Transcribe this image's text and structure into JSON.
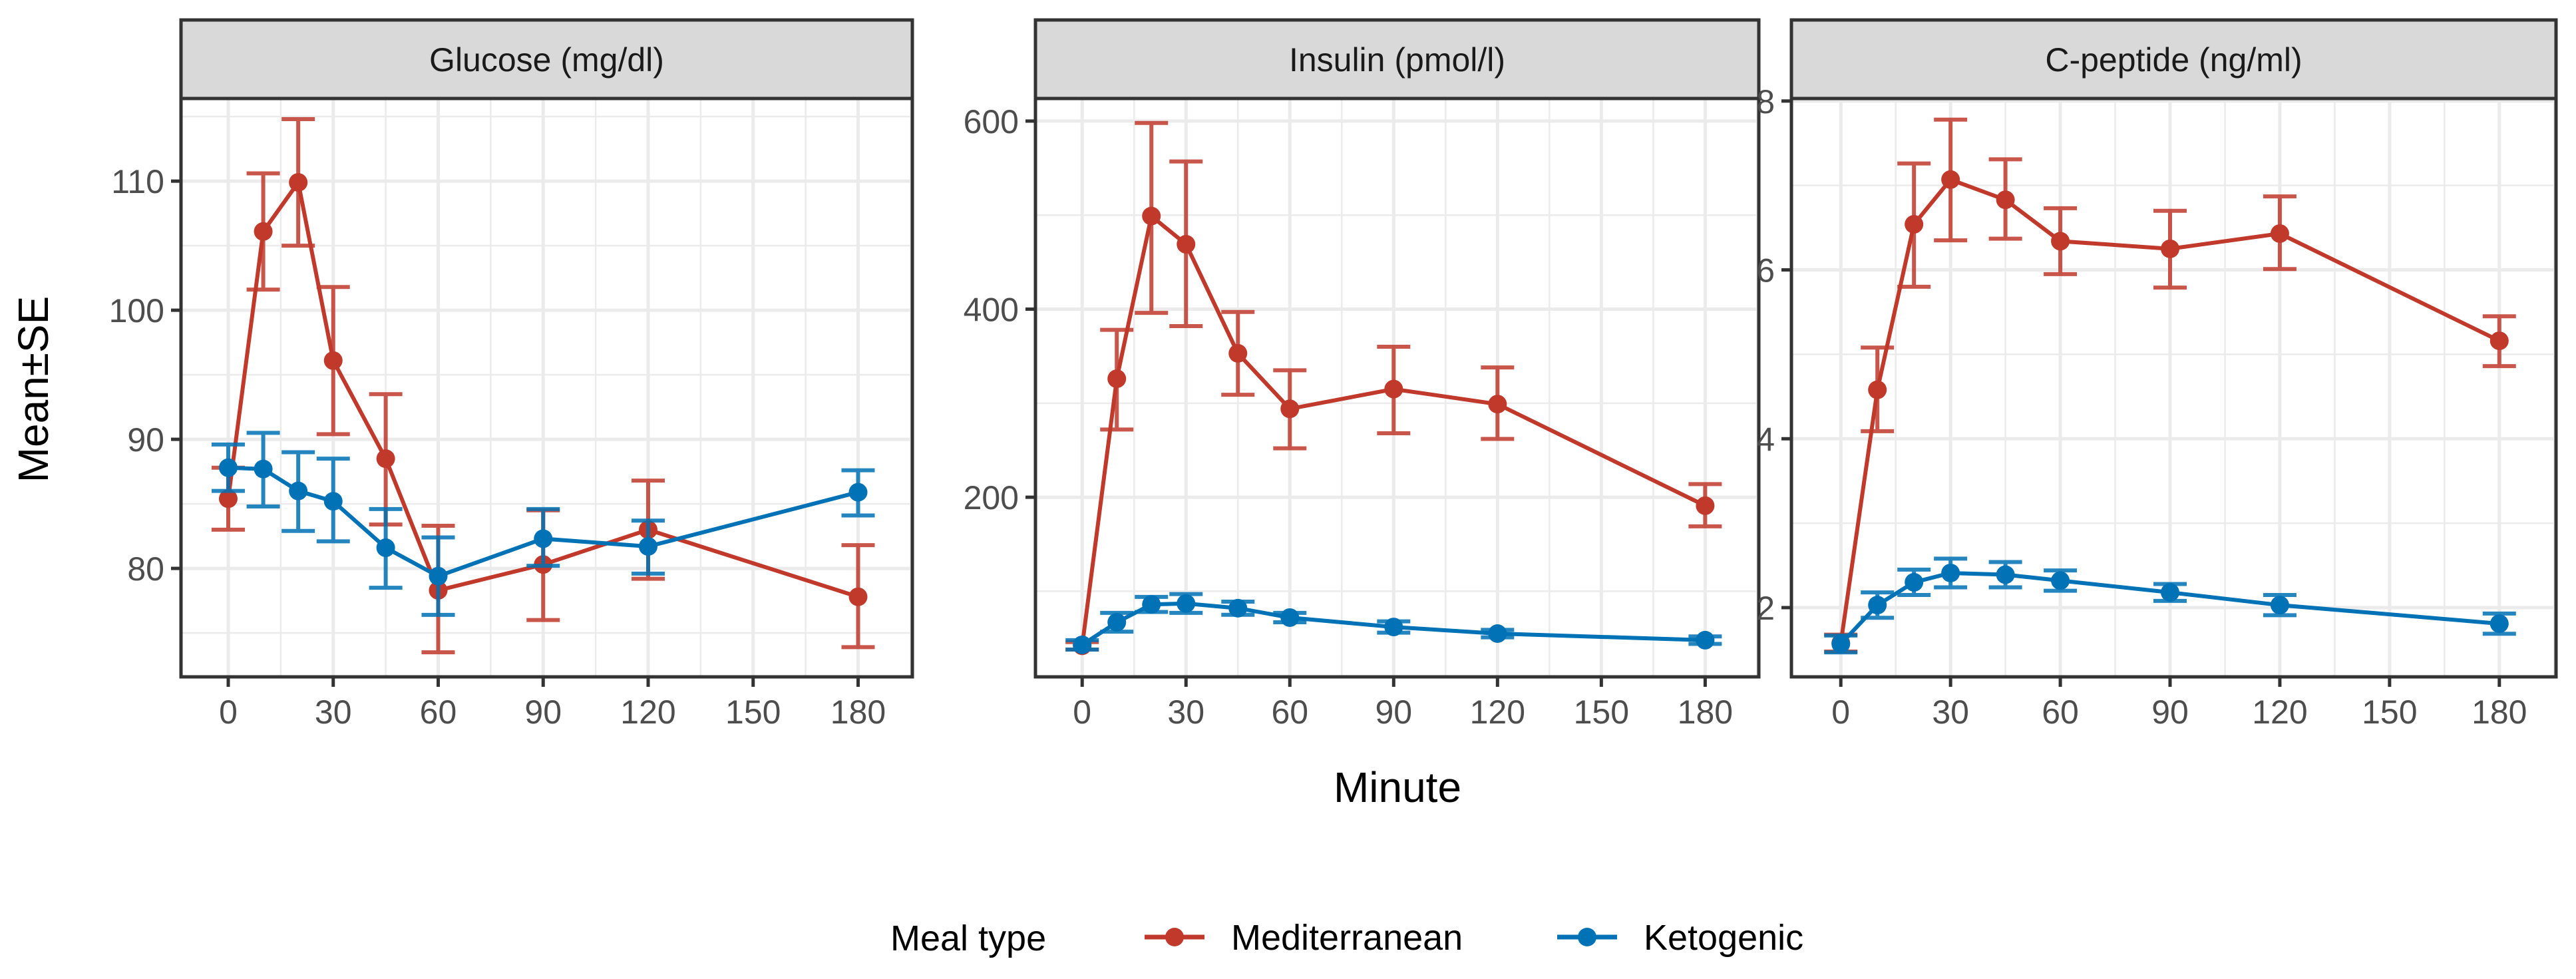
{
  "chart_data": [
    {
      "type": "line",
      "title": "Glucose (mg/dl)",
      "ylabel": "Mean±SE",
      "xlabel": "Minute",
      "x": [
        0,
        10,
        20,
        30,
        45,
        60,
        90,
        120,
        180
      ],
      "xticks": [
        0,
        30,
        60,
        90,
        120,
        150,
        180
      ],
      "xlim": [
        -13.5,
        195.5
      ],
      "yticks": [
        80,
        90,
        100,
        110
      ],
      "ylim": [
        71.6,
        116.4
      ],
      "grid": true,
      "series": [
        {
          "name": "Mediterranean",
          "values": [
            85.4,
            106.1,
            109.9,
            96.1,
            88.5,
            78.3,
            80.3,
            83.0,
            77.8
          ],
          "lower": [
            83.0,
            101.6,
            105.0,
            90.4,
            83.4,
            73.5,
            76.0,
            79.2,
            73.9
          ],
          "upper": [
            87.8,
            110.6,
            114.8,
            101.8,
            93.5,
            83.3,
            84.5,
            86.8,
            81.8
          ]
        },
        {
          "name": "Ketogenic",
          "values": [
            87.8,
            87.7,
            86.0,
            85.2,
            81.6,
            79.4,
            82.3,
            81.7,
            85.9
          ],
          "lower": [
            86.0,
            84.8,
            82.9,
            82.1,
            78.5,
            76.4,
            80.2,
            79.6,
            84.1
          ],
          "upper": [
            89.6,
            90.5,
            89.0,
            88.5,
            84.6,
            82.4,
            84.6,
            83.7,
            87.6
          ]
        }
      ]
    },
    {
      "type": "line",
      "title": "Insulin (pmol/l)",
      "x": [
        0,
        10,
        20,
        30,
        45,
        60,
        90,
        120,
        180
      ],
      "xticks": [
        0,
        30,
        60,
        90,
        120,
        150,
        180
      ],
      "xlim": [
        -13.5,
        195.5
      ],
      "yticks": [
        200,
        400,
        600
      ],
      "ylim": [
        9,
        624
      ],
      "grid": true,
      "series": [
        {
          "name": "Mediterranean",
          "values": [
            42,
            326,
            499,
            469,
            353,
            294,
            315,
            299,
            191
          ],
          "lower": [
            38,
            272,
            396,
            382,
            309,
            252,
            268,
            262,
            169
          ],
          "upper": [
            46,
            378,
            598,
            557,
            397,
            335,
            360,
            338,
            214
          ]
        },
        {
          "name": "Ketogenic",
          "values": [
            43,
            67,
            86,
            87,
            82,
            72,
            62,
            55,
            48
          ],
          "lower": [
            38,
            57,
            78,
            77,
            75,
            67,
            56,
            51,
            44
          ],
          "upper": [
            48,
            77,
            94,
            97,
            89,
            77,
            68,
            59,
            52
          ]
        }
      ]
    },
    {
      "type": "line",
      "title": "C-peptide (ng/ml)",
      "x": [
        0,
        10,
        20,
        30,
        45,
        60,
        90,
        120,
        180
      ],
      "xticks": [
        0,
        30,
        60,
        90,
        120,
        150,
        180
      ],
      "xlim": [
        -13.5,
        195.5
      ],
      "yticks": [
        2,
        4,
        6,
        8
      ],
      "ylim": [
        1.18,
        8.03
      ],
      "grid": true,
      "series": [
        {
          "name": "Mediterranean",
          "values": [
            1.58,
            4.58,
            6.54,
            7.07,
            6.83,
            6.34,
            6.25,
            6.43,
            5.16
          ],
          "lower": [
            1.48,
            4.09,
            5.8,
            6.35,
            6.37,
            5.95,
            5.79,
            6.01,
            4.86
          ],
          "upper": [
            1.68,
            5.08,
            7.26,
            7.78,
            7.31,
            6.73,
            6.7,
            6.87,
            5.45
          ]
        },
        {
          "name": "Ketogenic",
          "values": [
            1.57,
            2.03,
            2.3,
            2.41,
            2.39,
            2.32,
            2.18,
            2.03,
            1.81
          ],
          "lower": [
            1.47,
            1.88,
            2.15,
            2.24,
            2.24,
            2.2,
            2.08,
            1.91,
            1.69
          ],
          "upper": [
            1.67,
            2.18,
            2.45,
            2.58,
            2.54,
            2.44,
            2.28,
            2.15,
            1.93
          ]
        }
      ]
    }
  ],
  "axes": {
    "ylabel": "Mean±SE",
    "xlabel": "Minute"
  },
  "legend": {
    "title": "Meal type",
    "placement": "bottom",
    "items": [
      {
        "label": "Mediterranean",
        "color": "#C0392B"
      },
      {
        "label": "Ketogenic",
        "color": "#0072B5"
      }
    ]
  }
}
